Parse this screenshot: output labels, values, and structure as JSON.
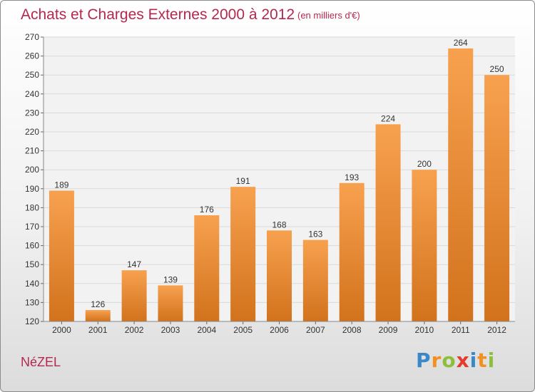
{
  "header": {
    "title": "Achats et Charges Externes 2000 à 2012",
    "unit": "(en milliers d'€)"
  },
  "footer": {
    "commune": "NéZEL",
    "brand": "Proxiti",
    "brand_letters": [
      {
        "char": "P",
        "color": "#3b88c8"
      },
      {
        "char": "r",
        "color": "#f29021"
      },
      {
        "char": "o",
        "color": "#8dbf3c"
      },
      {
        "char": "x",
        "color": "#e43b2d"
      },
      {
        "char": "i",
        "color": "#3b88c8"
      },
      {
        "char": "t",
        "color": "#f29021"
      },
      {
        "char": "i",
        "color": "#8dbf3c"
      }
    ]
  },
  "chart_data": {
    "type": "bar",
    "categories": [
      "2000",
      "2001",
      "2002",
      "2003",
      "2004",
      "2005",
      "2006",
      "2007",
      "2008",
      "2009",
      "2010",
      "2011",
      "2012"
    ],
    "values": [
      189,
      126,
      147,
      139,
      176,
      191,
      168,
      163,
      193,
      224,
      200,
      264,
      250
    ],
    "ylim": [
      120,
      270
    ],
    "yticks": [
      120,
      130,
      140,
      150,
      160,
      170,
      180,
      190,
      200,
      210,
      220,
      230,
      240,
      250,
      260,
      270
    ],
    "grid": true,
    "legend": "none",
    "colors": {
      "bar_top": "#f7a14f",
      "bar_bottom": "#d2721c",
      "text": "#b5284e",
      "axis_text": "#333333",
      "grid": "#d9d9d9"
    }
  }
}
